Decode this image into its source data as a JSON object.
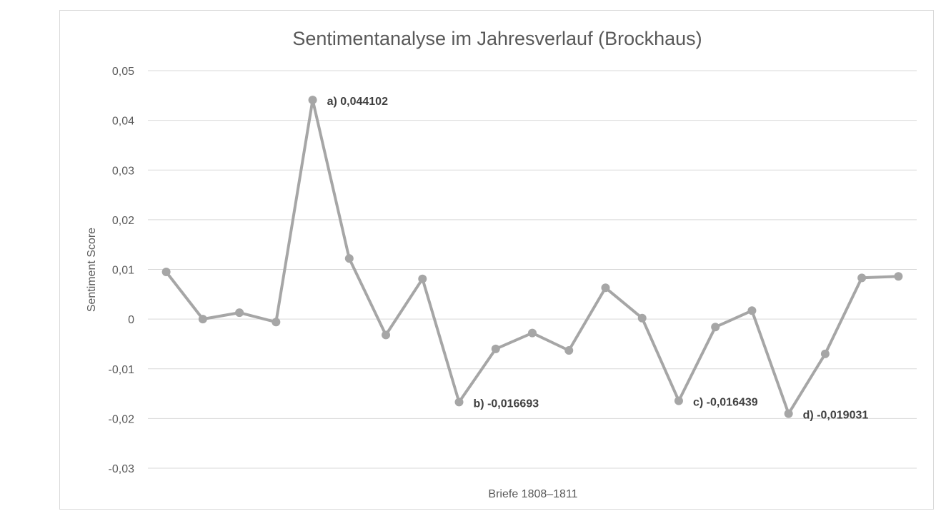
{
  "chart_data": {
    "type": "line",
    "title": "Sentimentanalyse im Jahresverlauf (Brockhaus)",
    "xlabel": "Briefe 1808–1811",
    "ylabel": "Sentiment Score",
    "ylim": [
      -0.03,
      0.05
    ],
    "yticks": [
      0.05,
      0.04,
      0.03,
      0.02,
      0.01,
      0,
      -0.01,
      -0.02,
      -0.03
    ],
    "ytick_labels": [
      "0,05",
      "0,04",
      "0,03",
      "0,02",
      "0,01",
      "0",
      "-0,01",
      "-0,02",
      "-0,03"
    ],
    "grid": true,
    "series": [
      {
        "color": "#a6a6a6",
        "values": [
          0.0095,
          0.0,
          0.0013,
          -0.0006,
          0.044102,
          0.0122,
          -0.0032,
          0.0081,
          -0.016693,
          -0.006,
          -0.0028,
          -0.0063,
          0.0063,
          0.0002,
          -0.016439,
          -0.0016,
          0.0017,
          -0.019031,
          -0.007,
          0.0083,
          0.0086
        ]
      }
    ],
    "annotations": [
      {
        "index": 4,
        "text": "a) 0,044102"
      },
      {
        "index": 8,
        "text": "b) -0,016693"
      },
      {
        "index": 14,
        "text": "c) -0,016439"
      },
      {
        "index": 17,
        "text": "d) -0,019031"
      }
    ]
  }
}
